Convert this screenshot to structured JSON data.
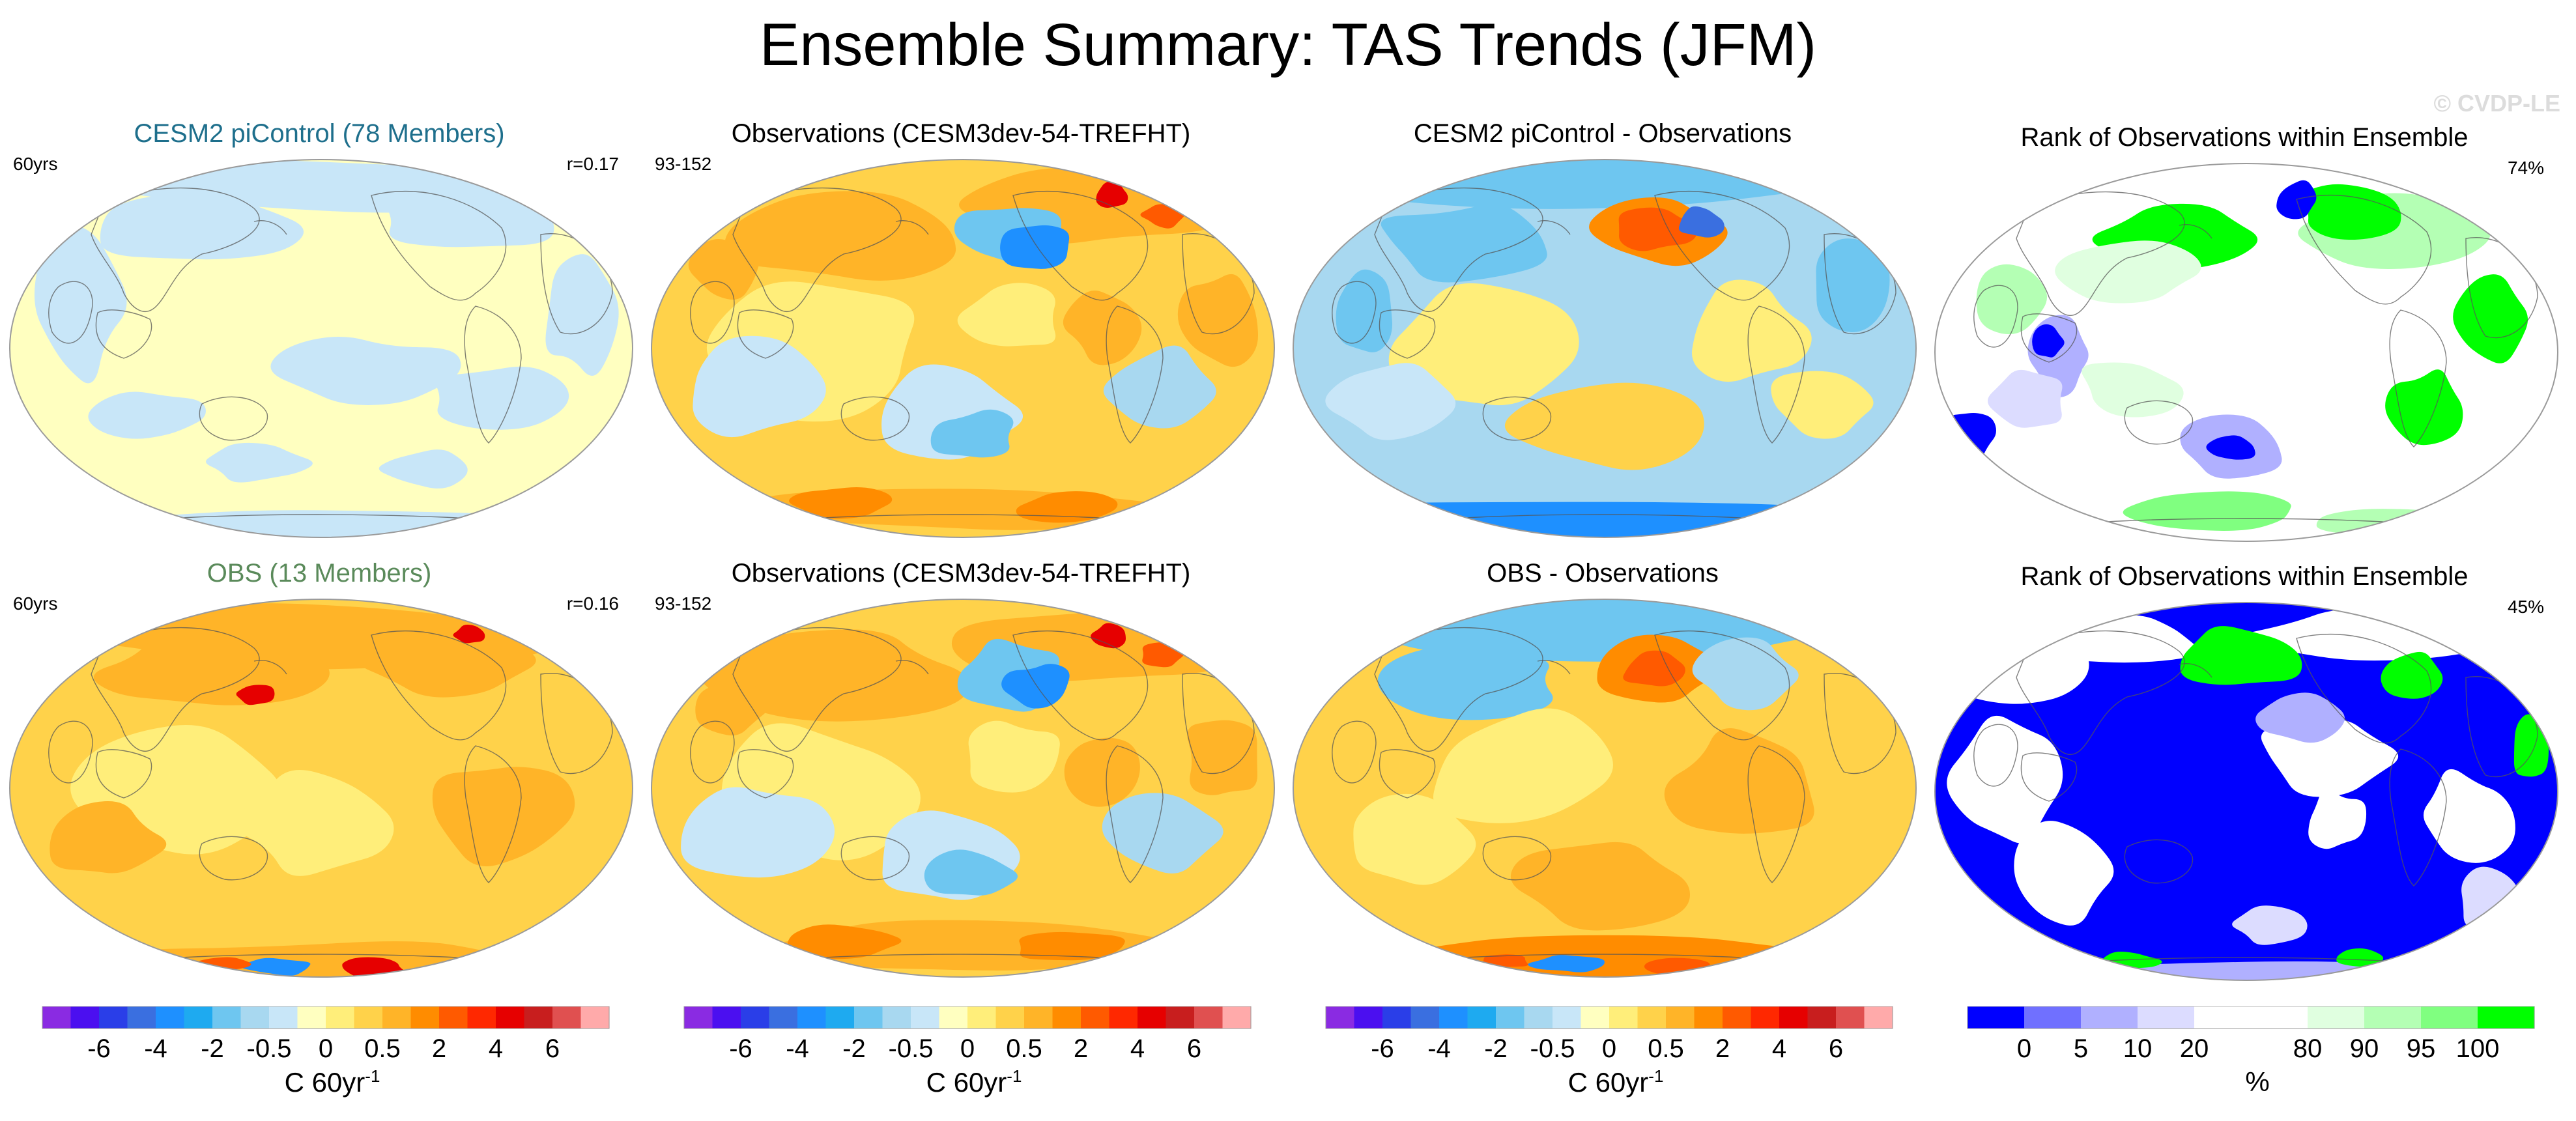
{
  "title": "Ensemble Summary: TAS Trends (JFM)",
  "watermark": "© CVDP-LE",
  "panels": [
    {
      "title": "CESM2 piControl (78 Members)",
      "title_color": "#1e6f8c",
      "left_label": "60yrs",
      "right_label": "r=0.17",
      "palette": "trend",
      "pattern": "mean_control"
    },
    {
      "title": "Observations (CESM3dev-54-TREFHT)",
      "title_color": "#000000",
      "left_label": "93-152",
      "right_label": "",
      "palette": "trend",
      "pattern": "observed"
    },
    {
      "title": "CESM2 piControl - Observations",
      "title_color": "#000000",
      "left_label": "",
      "right_label": "",
      "palette": "trend",
      "pattern": "diff_control"
    },
    {
      "title": "Rank of Observations within Ensemble",
      "title_color": "#000000",
      "left_label": "",
      "right_label": "74%",
      "palette": "rank",
      "pattern": "rank_control"
    },
    {
      "title": "OBS (13 Members)",
      "title_color": "#5a8a5a",
      "left_label": "60yrs",
      "right_label": "r=0.16",
      "palette": "trend",
      "pattern": "mean_obs"
    },
    {
      "title": "Observations (CESM3dev-54-TREFHT)",
      "title_color": "#000000",
      "left_label": "93-152",
      "right_label": "",
      "palette": "trend",
      "pattern": "observed"
    },
    {
      "title": "OBS - Observations",
      "title_color": "#000000",
      "left_label": "",
      "right_label": "",
      "palette": "trend",
      "pattern": "diff_obs"
    },
    {
      "title": "Rank of Observations within Ensemble",
      "title_color": "#000000",
      "left_label": "",
      "right_label": "45%",
      "palette": "rank",
      "pattern": "rank_obs"
    }
  ],
  "trend_colorbar": {
    "colors": [
      "#8a2be2",
      "#4b0ff0",
      "#2a3ee8",
      "#3a6fe0",
      "#1e90ff",
      "#1eaaf0",
      "#6ec6f0",
      "#a8d8f0",
      "#c8e6f8",
      "#ffffc0",
      "#ffee7a",
      "#ffd24a",
      "#ffb428",
      "#ff8c00",
      "#ff5a00",
      "#ff2800",
      "#e60000",
      "#c81e1e",
      "#e05050",
      "#ffaaaa"
    ],
    "labels": [
      "-6",
      "-4",
      "-2",
      "-0.5",
      "0",
      "0.5",
      "2",
      "4",
      "6"
    ],
    "label_slots": [
      2,
      4,
      6,
      8,
      10,
      12,
      14,
      16,
      18
    ],
    "units": "C 60yr",
    "units_sup": "-1"
  },
  "rank_colorbar": {
    "colors": [
      "#0000ff",
      "#7070ff",
      "#b0b0ff",
      "#dcdcff",
      "#ffffff",
      "#ffffff",
      "#e0ffe0",
      "#b4ffb4",
      "#80ff80",
      "#00ff00"
    ],
    "labels": [
      "0",
      "5",
      "10",
      "20",
      "80",
      "90",
      "95",
      "100"
    ],
    "label_slots": [
      1,
      2,
      3,
      4,
      6,
      7,
      8,
      9
    ],
    "units": "%"
  }
}
